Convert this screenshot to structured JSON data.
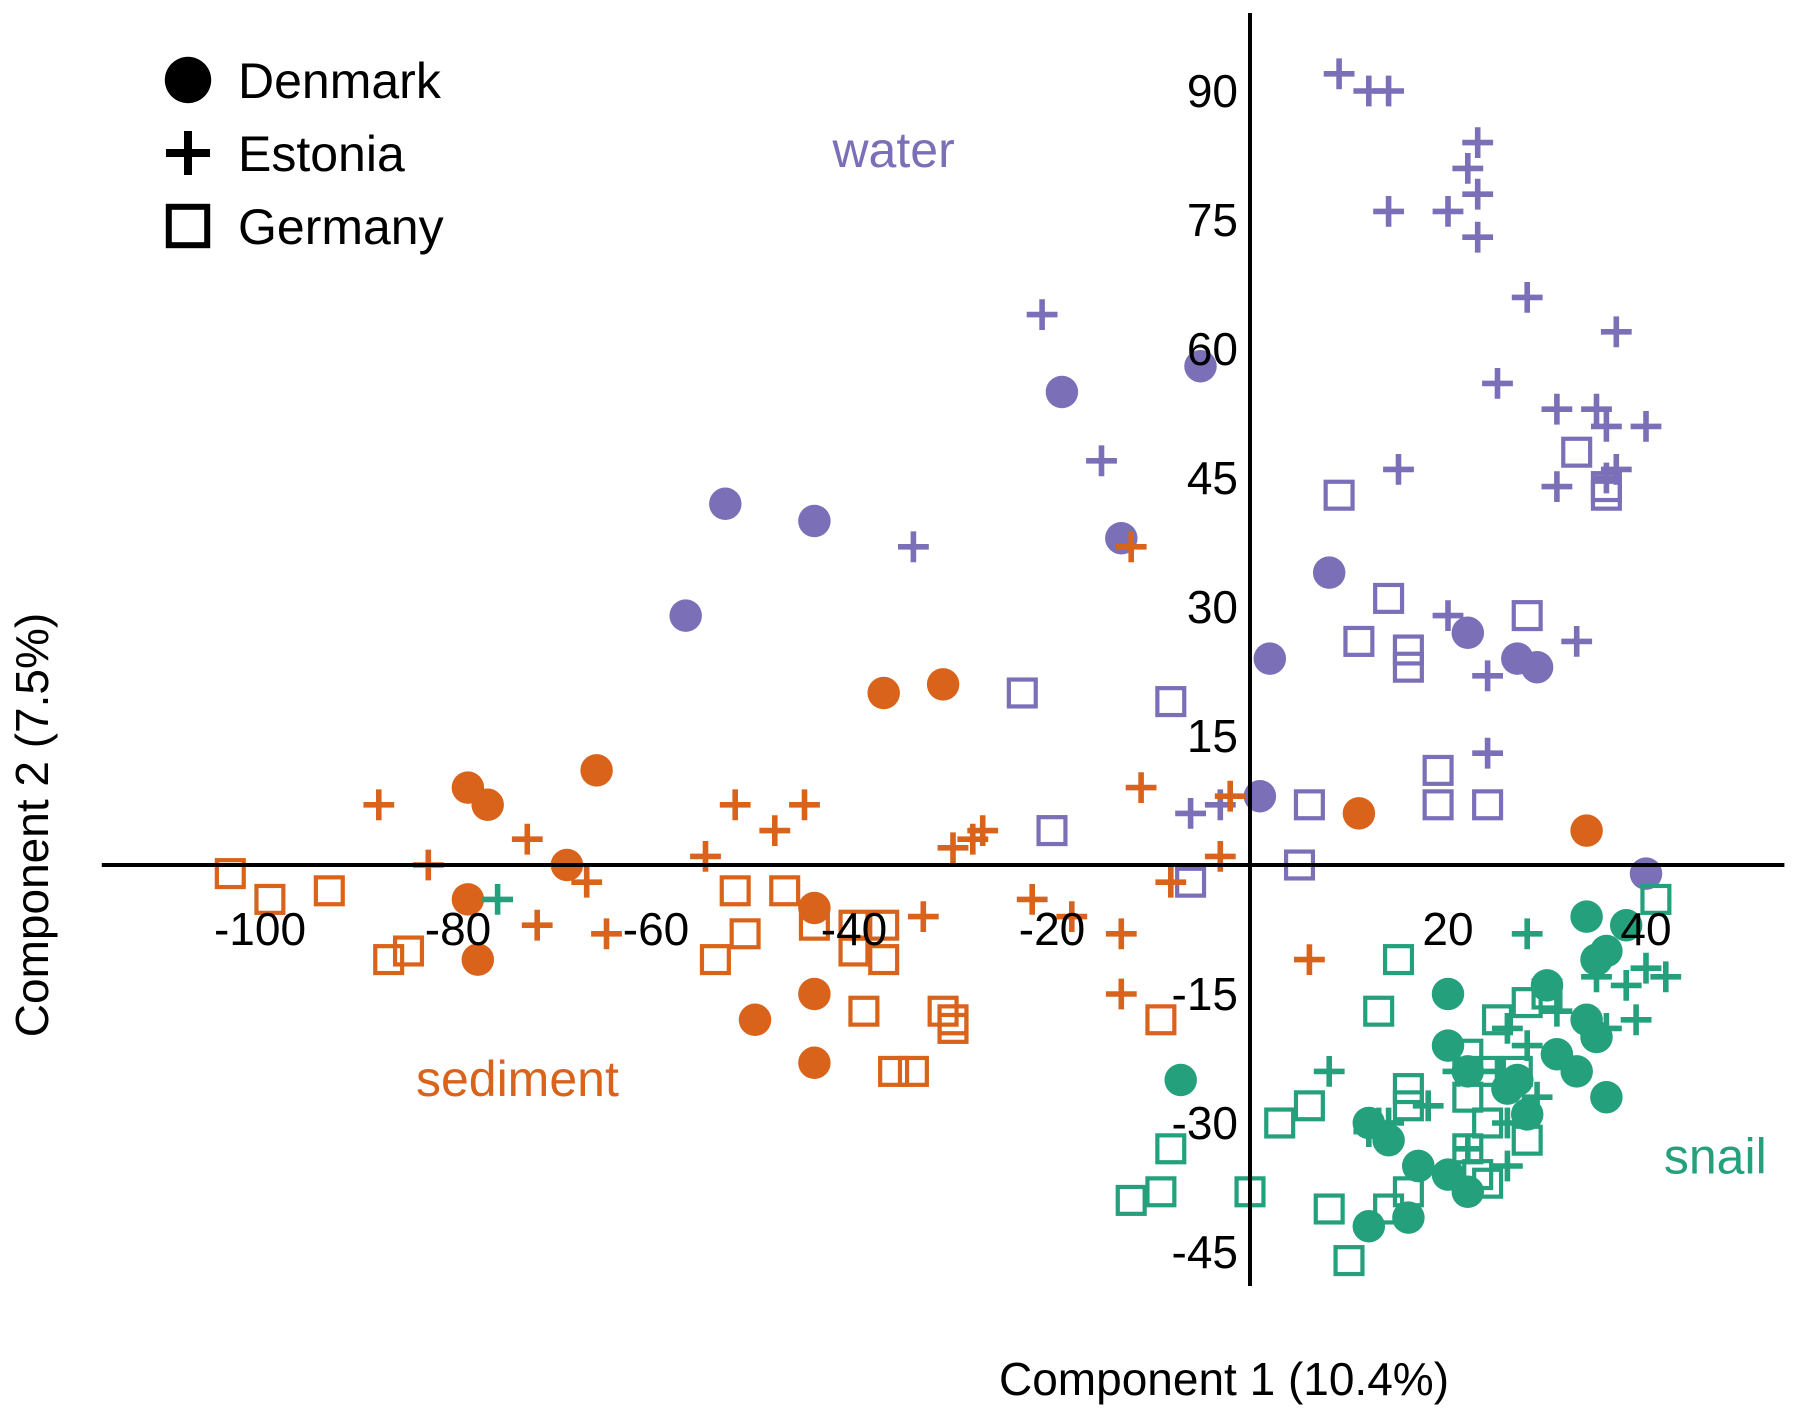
{
  "chart_data": {
    "type": "scatter",
    "title": "",
    "xlabel": "Component 1 (10.4%)",
    "ylabel": "Component 2 (7.5%)",
    "xlim": [
      -118,
      56
    ],
    "ylim": [
      -50,
      100
    ],
    "xticks": [
      -100,
      -80,
      -60,
      -40,
      -20,
      20,
      40
    ],
    "yticks": [
      90,
      75,
      60,
      45,
      30,
      15,
      -15,
      -30,
      -45
    ],
    "grid": false,
    "legend": {
      "placement": "top-left",
      "entries": [
        {
          "label": "Denmark",
          "marker": "circle"
        },
        {
          "label": "Estonia",
          "marker": "plus"
        },
        {
          "label": "Germany",
          "marker": "square"
        }
      ]
    },
    "groups": [
      {
        "label": "water",
        "color": "#7b6fb8",
        "label_at": [
          -36,
          83
        ]
      },
      {
        "label": "sediment",
        "color": "#d9631a",
        "label_at": [
          -74,
          -25
        ]
      },
      {
        "label": "snail",
        "color": "#24a07c",
        "label_at": [
          47,
          -34
        ]
      }
    ],
    "series": [
      {
        "country": "Denmark",
        "group": "water",
        "marker": "circle",
        "points": [
          [
            -19,
            55
          ],
          [
            -5,
            58
          ],
          [
            -53,
            42
          ],
          [
            -44,
            40
          ],
          [
            -57,
            29
          ],
          [
            -13,
            38
          ],
          [
            8,
            34
          ],
          [
            2,
            24
          ],
          [
            22,
            27
          ],
          [
            27,
            24
          ],
          [
            29,
            23
          ],
          [
            1,
            8
          ],
          [
            40,
            -1
          ]
        ]
      },
      {
        "country": "Estonia",
        "group": "water",
        "marker": "plus",
        "points": [
          [
            9,
            92
          ],
          [
            12,
            90
          ],
          [
            14,
            90
          ],
          [
            23,
            84
          ],
          [
            22,
            81
          ],
          [
            23,
            78
          ],
          [
            20,
            76
          ],
          [
            14,
            76
          ],
          [
            23,
            73
          ],
          [
            28,
            66
          ],
          [
            37,
            62
          ],
          [
            -21,
            64
          ],
          [
            25,
            56
          ],
          [
            -15,
            47
          ],
          [
            -34,
            37
          ],
          [
            15,
            46
          ],
          [
            31,
            53
          ],
          [
            35,
            53
          ],
          [
            40,
            51
          ],
          [
            36,
            51
          ],
          [
            37,
            46
          ],
          [
            36,
            45
          ],
          [
            31,
            44
          ],
          [
            20,
            29
          ],
          [
            33,
            26
          ],
          [
            24,
            22
          ],
          [
            24,
            13
          ],
          [
            -6,
            6
          ],
          [
            -3,
            7
          ]
        ]
      },
      {
        "country": "Germany",
        "group": "water",
        "marker": "square",
        "points": [
          [
            9,
            43
          ],
          [
            14,
            31
          ],
          [
            11,
            26
          ],
          [
            16,
            25
          ],
          [
            16,
            23
          ],
          [
            28,
            29
          ],
          [
            33,
            48
          ],
          [
            36,
            44
          ],
          [
            36,
            43
          ],
          [
            -23,
            20
          ],
          [
            -8,
            19
          ],
          [
            -20,
            4
          ],
          [
            19,
            11
          ],
          [
            6,
            7
          ],
          [
            19,
            7
          ],
          [
            24,
            7
          ],
          [
            5,
            0
          ],
          [
            -6,
            -2
          ]
        ]
      },
      {
        "country": "Denmark",
        "group": "sediment",
        "marker": "circle",
        "points": [
          [
            -37,
            20
          ],
          [
            -31,
            21
          ],
          [
            -66,
            11
          ],
          [
            -79,
            9
          ],
          [
            -77,
            7
          ],
          [
            -69,
            0
          ],
          [
            -79,
            -4
          ],
          [
            -78,
            -11
          ],
          [
            -44,
            -5
          ],
          [
            -44,
            -15
          ],
          [
            -50,
            -18
          ],
          [
            -44,
            -23
          ],
          [
            11,
            6
          ],
          [
            34,
            4
          ]
        ]
      },
      {
        "country": "Estonia",
        "group": "sediment",
        "marker": "plus",
        "points": [
          [
            -12,
            37
          ],
          [
            -11,
            9
          ],
          [
            -88,
            7
          ],
          [
            -52,
            7
          ],
          [
            -45,
            7
          ],
          [
            -48,
            4
          ],
          [
            -73,
            3
          ],
          [
            -30,
            2
          ],
          [
            -28,
            3
          ],
          [
            -27,
            4
          ],
          [
            -55,
            1
          ],
          [
            -83,
            0
          ],
          [
            -67,
            -2
          ],
          [
            -8,
            -2
          ],
          [
            -3,
            1
          ],
          [
            -72,
            -7
          ],
          [
            -65,
            -8
          ],
          [
            -33,
            -6
          ],
          [
            -22,
            -4
          ],
          [
            -18,
            -6
          ],
          [
            -13,
            -8
          ],
          [
            -13,
            -15
          ],
          [
            6,
            -11
          ],
          [
            -2,
            8
          ]
        ]
      },
      {
        "country": "Germany",
        "group": "sediment",
        "marker": "square",
        "points": [
          [
            -103,
            -1
          ],
          [
            -99,
            -4
          ],
          [
            -93,
            -3
          ],
          [
            -87,
            -11
          ],
          [
            -85,
            -10
          ],
          [
            -52,
            -3
          ],
          [
            -47,
            -3
          ],
          [
            -51,
            -8
          ],
          [
            -54,
            -11
          ],
          [
            -44,
            -7
          ],
          [
            -40,
            -7
          ],
          [
            -37,
            -7
          ],
          [
            -40,
            -10
          ],
          [
            -37,
            -11
          ],
          [
            -39,
            -17
          ],
          [
            -31,
            -17
          ],
          [
            -30,
            -18
          ],
          [
            -30,
            -19
          ],
          [
            -36,
            -24
          ],
          [
            -34,
            -24
          ],
          [
            -9,
            -18
          ]
        ]
      },
      {
        "country": "Denmark",
        "group": "snail",
        "marker": "circle",
        "points": [
          [
            -7,
            -25
          ],
          [
            20,
            -15
          ],
          [
            34,
            -6
          ],
          [
            38,
            -7
          ],
          [
            36,
            -10
          ],
          [
            35,
            -11
          ],
          [
            30,
            -14
          ],
          [
            34,
            -18
          ],
          [
            35,
            -20
          ],
          [
            31,
            -22
          ],
          [
            27,
            -25
          ],
          [
            33,
            -24
          ],
          [
            36,
            -27
          ],
          [
            20,
            -21
          ],
          [
            22,
            -24
          ],
          [
            26,
            -26
          ],
          [
            28,
            -29
          ],
          [
            12,
            -30
          ],
          [
            14,
            -32
          ],
          [
            17,
            -35
          ],
          [
            20,
            -36
          ],
          [
            22,
            -38
          ],
          [
            12,
            -42
          ],
          [
            16,
            -41
          ],
          [
            17,
            -35
          ]
        ]
      },
      {
        "country": "Estonia",
        "group": "snail",
        "marker": "plus",
        "points": [
          [
            -76,
            -4
          ],
          [
            28,
            -8
          ],
          [
            35,
            -13
          ],
          [
            38,
            -14
          ],
          [
            40,
            -12
          ],
          [
            42,
            -13
          ],
          [
            39,
            -18
          ],
          [
            36,
            -19
          ],
          [
            31,
            -17
          ],
          [
            26,
            -19
          ],
          [
            28,
            -21
          ],
          [
            25,
            -24
          ],
          [
            21,
            -24
          ],
          [
            18,
            -28
          ],
          [
            14,
            -30
          ],
          [
            13,
            -30
          ],
          [
            12,
            -31
          ],
          [
            8,
            -24
          ],
          [
            22,
            -33
          ],
          [
            26,
            -35
          ],
          [
            26,
            -30
          ],
          [
            29,
            -27
          ]
        ]
      },
      {
        "country": "Germany",
        "group": "snail",
        "marker": "square",
        "points": [
          [
            41,
            -4
          ],
          [
            15,
            -11
          ],
          [
            13,
            -17
          ],
          [
            30,
            -15
          ],
          [
            28,
            -16
          ],
          [
            25,
            -18
          ],
          [
            22,
            -22
          ],
          [
            24,
            -24
          ],
          [
            27,
            -24
          ],
          [
            22,
            -27
          ],
          [
            24,
            -30
          ],
          [
            28,
            -32
          ],
          [
            16,
            -26
          ],
          [
            16,
            -28
          ],
          [
            6,
            -28
          ],
          [
            3,
            -30
          ],
          [
            -8,
            -33
          ],
          [
            -9,
            -38
          ],
          [
            -12,
            -39
          ],
          [
            0,
            -38
          ],
          [
            8,
            -40
          ],
          [
            14,
            -40
          ],
          [
            16,
            -38
          ],
          [
            22,
            -33
          ],
          [
            23,
            -36
          ],
          [
            24,
            -37
          ],
          [
            10,
            -46
          ]
        ]
      }
    ]
  }
}
